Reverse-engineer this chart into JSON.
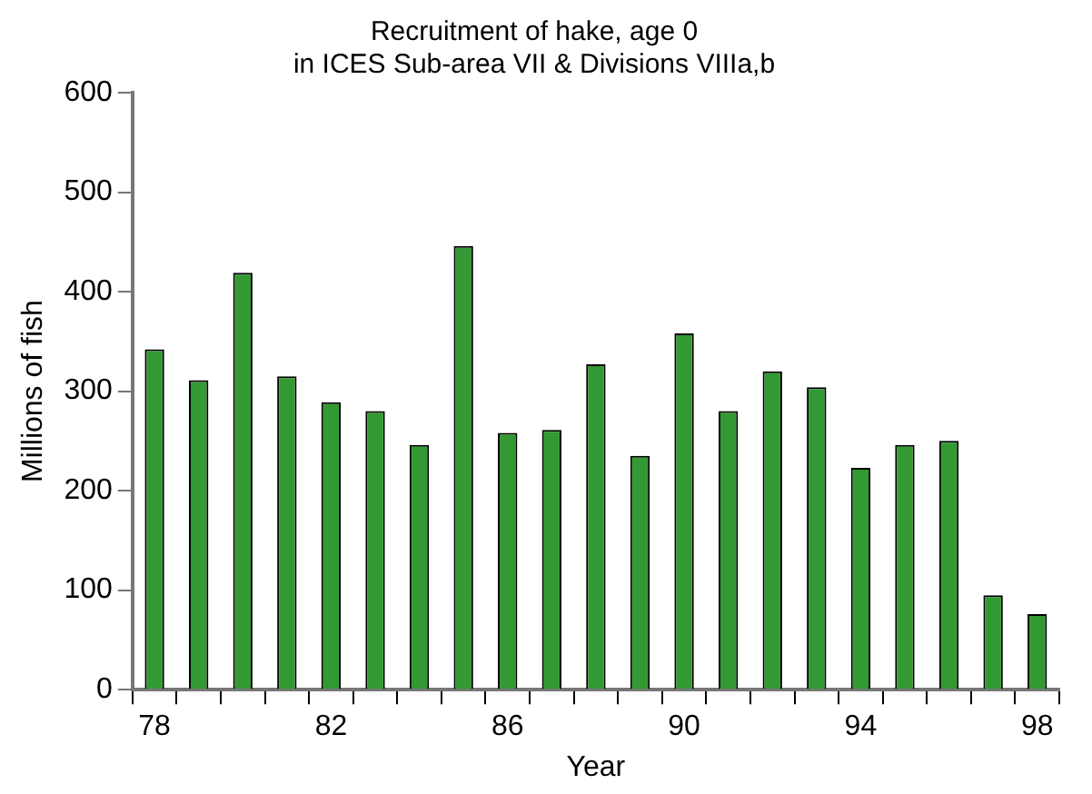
{
  "chart_data": {
    "type": "bar",
    "title": "Recruitment of hake, age 0\nin ICES Sub-area VII & Divisions VIIIa,b",
    "xlabel": "Year",
    "ylabel": "Millions of fish",
    "categories": [
      "78",
      null,
      null,
      null,
      "82",
      null,
      null,
      null,
      "86",
      null,
      null,
      null,
      "90",
      null,
      null,
      null,
      "94",
      null,
      null,
      null,
      "98"
    ],
    "values": [
      342,
      311,
      419,
      315,
      289,
      280,
      246,
      446,
      258,
      261,
      327,
      235,
      358,
      280,
      320,
      304,
      223,
      246,
      250,
      95,
      76
    ],
    "color": "#339933",
    "ylim": [
      0,
      600
    ],
    "yticks": [
      0,
      100,
      200,
      300,
      400,
      500,
      600
    ],
    "grid": false,
    "legend": false
  }
}
